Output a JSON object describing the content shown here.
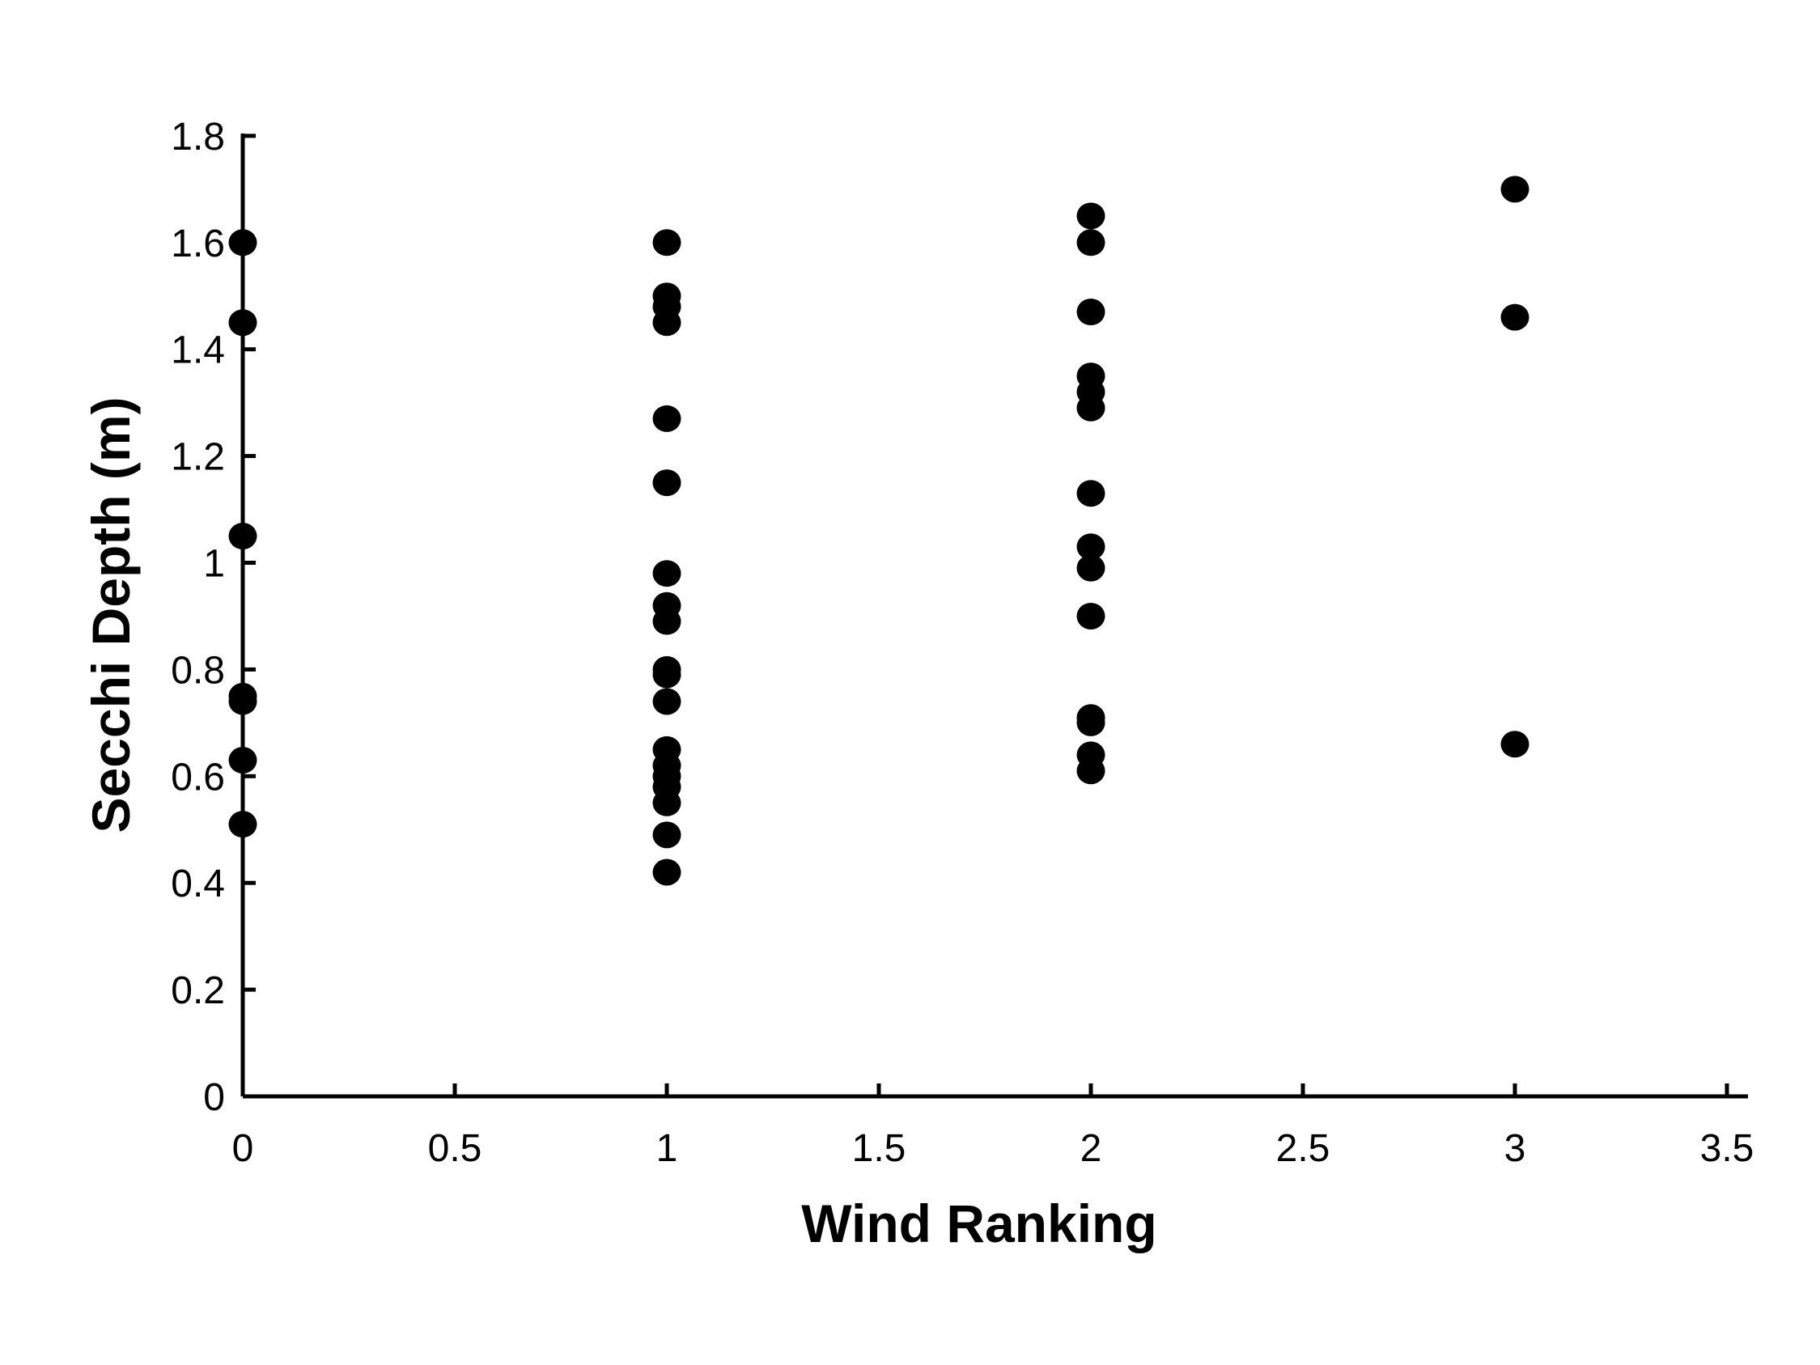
{
  "chart_data": {
    "type": "scatter",
    "title": "",
    "xlabel": "Wind Ranking",
    "ylabel": "Secchi Depth (m)",
    "xlim": [
      0,
      3.5
    ],
    "ylim": [
      0,
      1.8
    ],
    "grid": false,
    "legend": false,
    "marker": {
      "shape": "circle",
      "color": "#000000",
      "radius_px": 17
    },
    "axis_color": "#000000",
    "background_color": "#ffffff",
    "x_ticks": {
      "values": [
        0,
        0.5,
        1,
        1.5,
        2,
        2.5,
        3,
        3.5
      ],
      "labels": [
        "0",
        "0.5",
        "1",
        "1.5",
        "2",
        "2.5",
        "3",
        "3.5"
      ]
    },
    "y_ticks": {
      "values": [
        0,
        0.2,
        0.4,
        0.6,
        0.8,
        1.0,
        1.2,
        1.4,
        1.6,
        1.8
      ],
      "labels": [
        "0",
        "0.2",
        "0.4",
        "0.6",
        "0.8",
        "1",
        "1.2",
        "1.4",
        "1.6",
        "1.8"
      ]
    },
    "groups": [
      {
        "wind_ranking": 0,
        "secchi_depths": [
          1.6,
          1.45,
          1.05,
          0.75,
          0.74,
          0.63,
          0.51
        ]
      },
      {
        "wind_ranking": 1,
        "secchi_depths": [
          1.6,
          1.5,
          1.48,
          1.45,
          1.27,
          1.15,
          0.98,
          0.92,
          0.89,
          0.8,
          0.79,
          0.74,
          0.65,
          0.62,
          0.6,
          0.58,
          0.55,
          0.49,
          0.42
        ]
      },
      {
        "wind_ranking": 2,
        "secchi_depths": [
          1.65,
          1.6,
          1.47,
          1.35,
          1.32,
          1.29,
          1.13,
          1.03,
          0.99,
          0.9,
          0.71,
          0.7,
          0.64,
          0.61
        ]
      },
      {
        "wind_ranking": 3,
        "secchi_depths": [
          1.7,
          1.46,
          0.66
        ]
      }
    ]
  }
}
